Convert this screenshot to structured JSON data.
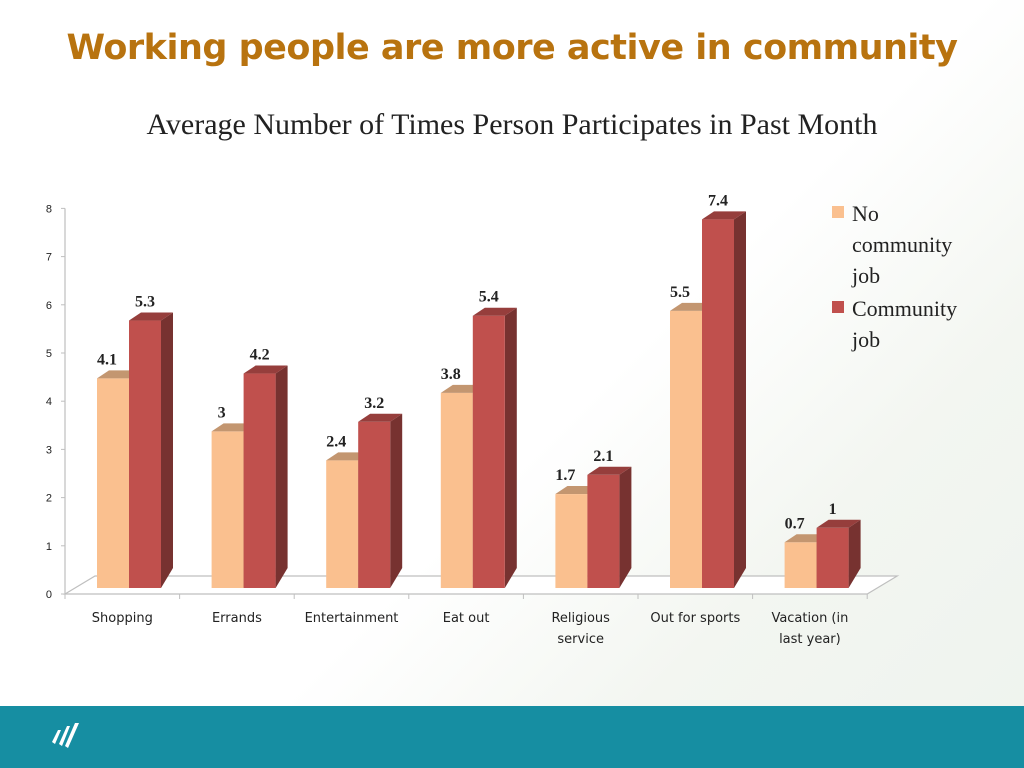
{
  "slide": {
    "title": "Working people are more active in community",
    "title_color": "#b8730f"
  },
  "chart_data": {
    "type": "bar",
    "subtitle": "Average Number of Times Person Participates in Past Month",
    "categories": [
      "Shopping",
      "Errands",
      "Entertainment",
      "Eat out",
      "Religious service",
      "Out for sports",
      "Vacation (in last year)"
    ],
    "category_lines": [
      [
        "Shopping"
      ],
      [
        "Errands"
      ],
      [
        "Entertainment"
      ],
      [
        "Eat out"
      ],
      [
        "Religious",
        "service"
      ],
      [
        "Out for sports"
      ],
      [
        "Vacation (in",
        "last year)"
      ]
    ],
    "series": [
      {
        "name": "No community job",
        "values": [
          4.1,
          3,
          2.4,
          3.8,
          1.7,
          5.5,
          0.7
        ],
        "color": "#fac08f"
      },
      {
        "name": "Community job",
        "values": [
          5.3,
          4.2,
          3.2,
          5.4,
          2.1,
          7.4,
          1
        ],
        "color": "#c0504d"
      }
    ],
    "ylim": [
      0,
      8
    ],
    "yticks": [
      0,
      1,
      2,
      3,
      4,
      5,
      6,
      7,
      8
    ],
    "legend_position": "right",
    "grid": false,
    "style": "3d-column"
  },
  "legend": {
    "items": [
      {
        "label_lines": [
          "No",
          "community",
          "job"
        ]
      },
      {
        "label_lines": [
          "Community",
          "job"
        ]
      }
    ]
  },
  "footer": {
    "color": "#168ea2",
    "logo_icon": "logo-slash-icon"
  }
}
